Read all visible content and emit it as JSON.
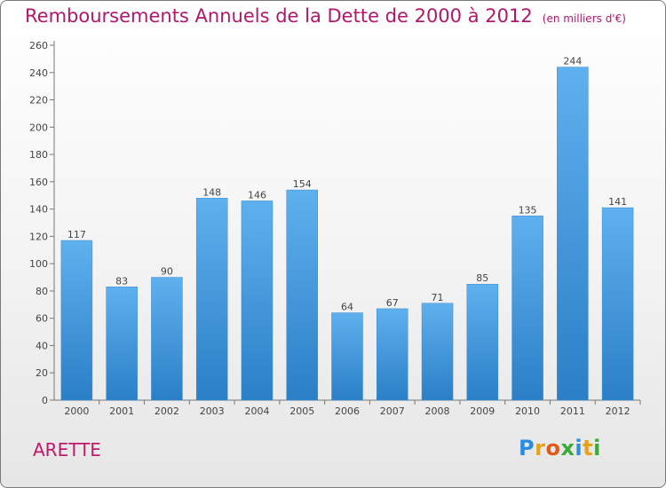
{
  "title": "Remboursements Annuels de la Dette de 2000 à 2012",
  "unit": "(en milliers d'€)",
  "commune": "ARETTE",
  "logo": {
    "letters": [
      "P",
      "r",
      "o",
      "x",
      "i",
      "t",
      "i"
    ],
    "colors": [
      "#2a8de0",
      "#e8a21a",
      "#e05a1a",
      "#3aaa3a",
      "#2a8de0",
      "#e8a21a",
      "#3aaa3a"
    ]
  },
  "colors": {
    "bar_light": "#5fb0ee",
    "bar_dark": "#2a7fc6",
    "title": "#b0186b"
  },
  "chart_data": {
    "type": "bar",
    "categories": [
      "2000",
      "2001",
      "2002",
      "2003",
      "2004",
      "2005",
      "2006",
      "2007",
      "2008",
      "2009",
      "2010",
      "2011",
      "2012"
    ],
    "values": [
      117,
      83,
      90,
      148,
      146,
      154,
      64,
      67,
      71,
      85,
      135,
      244,
      141
    ],
    "ylim": [
      0,
      260
    ],
    "yticks": [
      0,
      20,
      40,
      60,
      80,
      100,
      120,
      140,
      160,
      180,
      200,
      220,
      240,
      260
    ],
    "grid": false
  }
}
